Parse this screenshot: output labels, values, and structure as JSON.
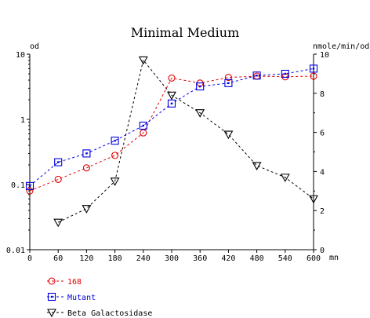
{
  "chart_data": {
    "type": "line",
    "title": "Minimal Medium",
    "xlabel": "mn",
    "ylabel_left": "od",
    "ylabel_right": "nmole/min/od",
    "x_ticks": [
      "0",
      "60",
      "120",
      "180",
      "240",
      "300",
      "360",
      "420",
      "480",
      "540",
      "600"
    ],
    "xlim": [
      0,
      600
    ],
    "y_left": {
      "scale": "log",
      "lim": [
        0.01,
        10
      ],
      "ticks": [
        "0.01",
        "0.1",
        "1",
        "10"
      ],
      "tick_values": [
        0.01,
        0.1,
        1,
        10
      ]
    },
    "y_right": {
      "scale": "linear",
      "lim": [
        0,
        10
      ],
      "ticks": [
        "0",
        "2",
        "4",
        "6",
        "8",
        "10"
      ],
      "tick_values": [
        0,
        2,
        4,
        6,
        8,
        10
      ]
    },
    "series": [
      {
        "name": "168",
        "axis": "left",
        "color": "#e00000",
        "marker": "circle",
        "x": [
          0,
          60,
          120,
          180,
          240,
          300,
          360,
          420,
          480,
          540,
          600
        ],
        "y": [
          0.08,
          0.12,
          0.18,
          0.28,
          0.62,
          4.3,
          3.6,
          4.4,
          4.6,
          4.5,
          4.6
        ]
      },
      {
        "name": "Mutant",
        "axis": "left",
        "color": "#0000e0",
        "marker": "square",
        "x": [
          0,
          60,
          120,
          180,
          240,
          300,
          360,
          420,
          480,
          540,
          600
        ],
        "y": [
          0.095,
          0.22,
          0.3,
          0.47,
          0.8,
          1.75,
          3.2,
          3.6,
          4.7,
          5.0,
          6.0
        ]
      },
      {
        "name": "Beta Galactosidase",
        "axis": "right",
        "color": "#000000",
        "marker": "triangle-down",
        "x": [
          60,
          120,
          180,
          240,
          300,
          360,
          420,
          480,
          540,
          600
        ],
        "y": [
          1.4,
          2.1,
          3.5,
          9.7,
          7.9,
          7.0,
          5.9,
          4.3,
          3.7,
          2.6
        ]
      }
    ],
    "grid": false,
    "legend_position": "bottom-left"
  }
}
